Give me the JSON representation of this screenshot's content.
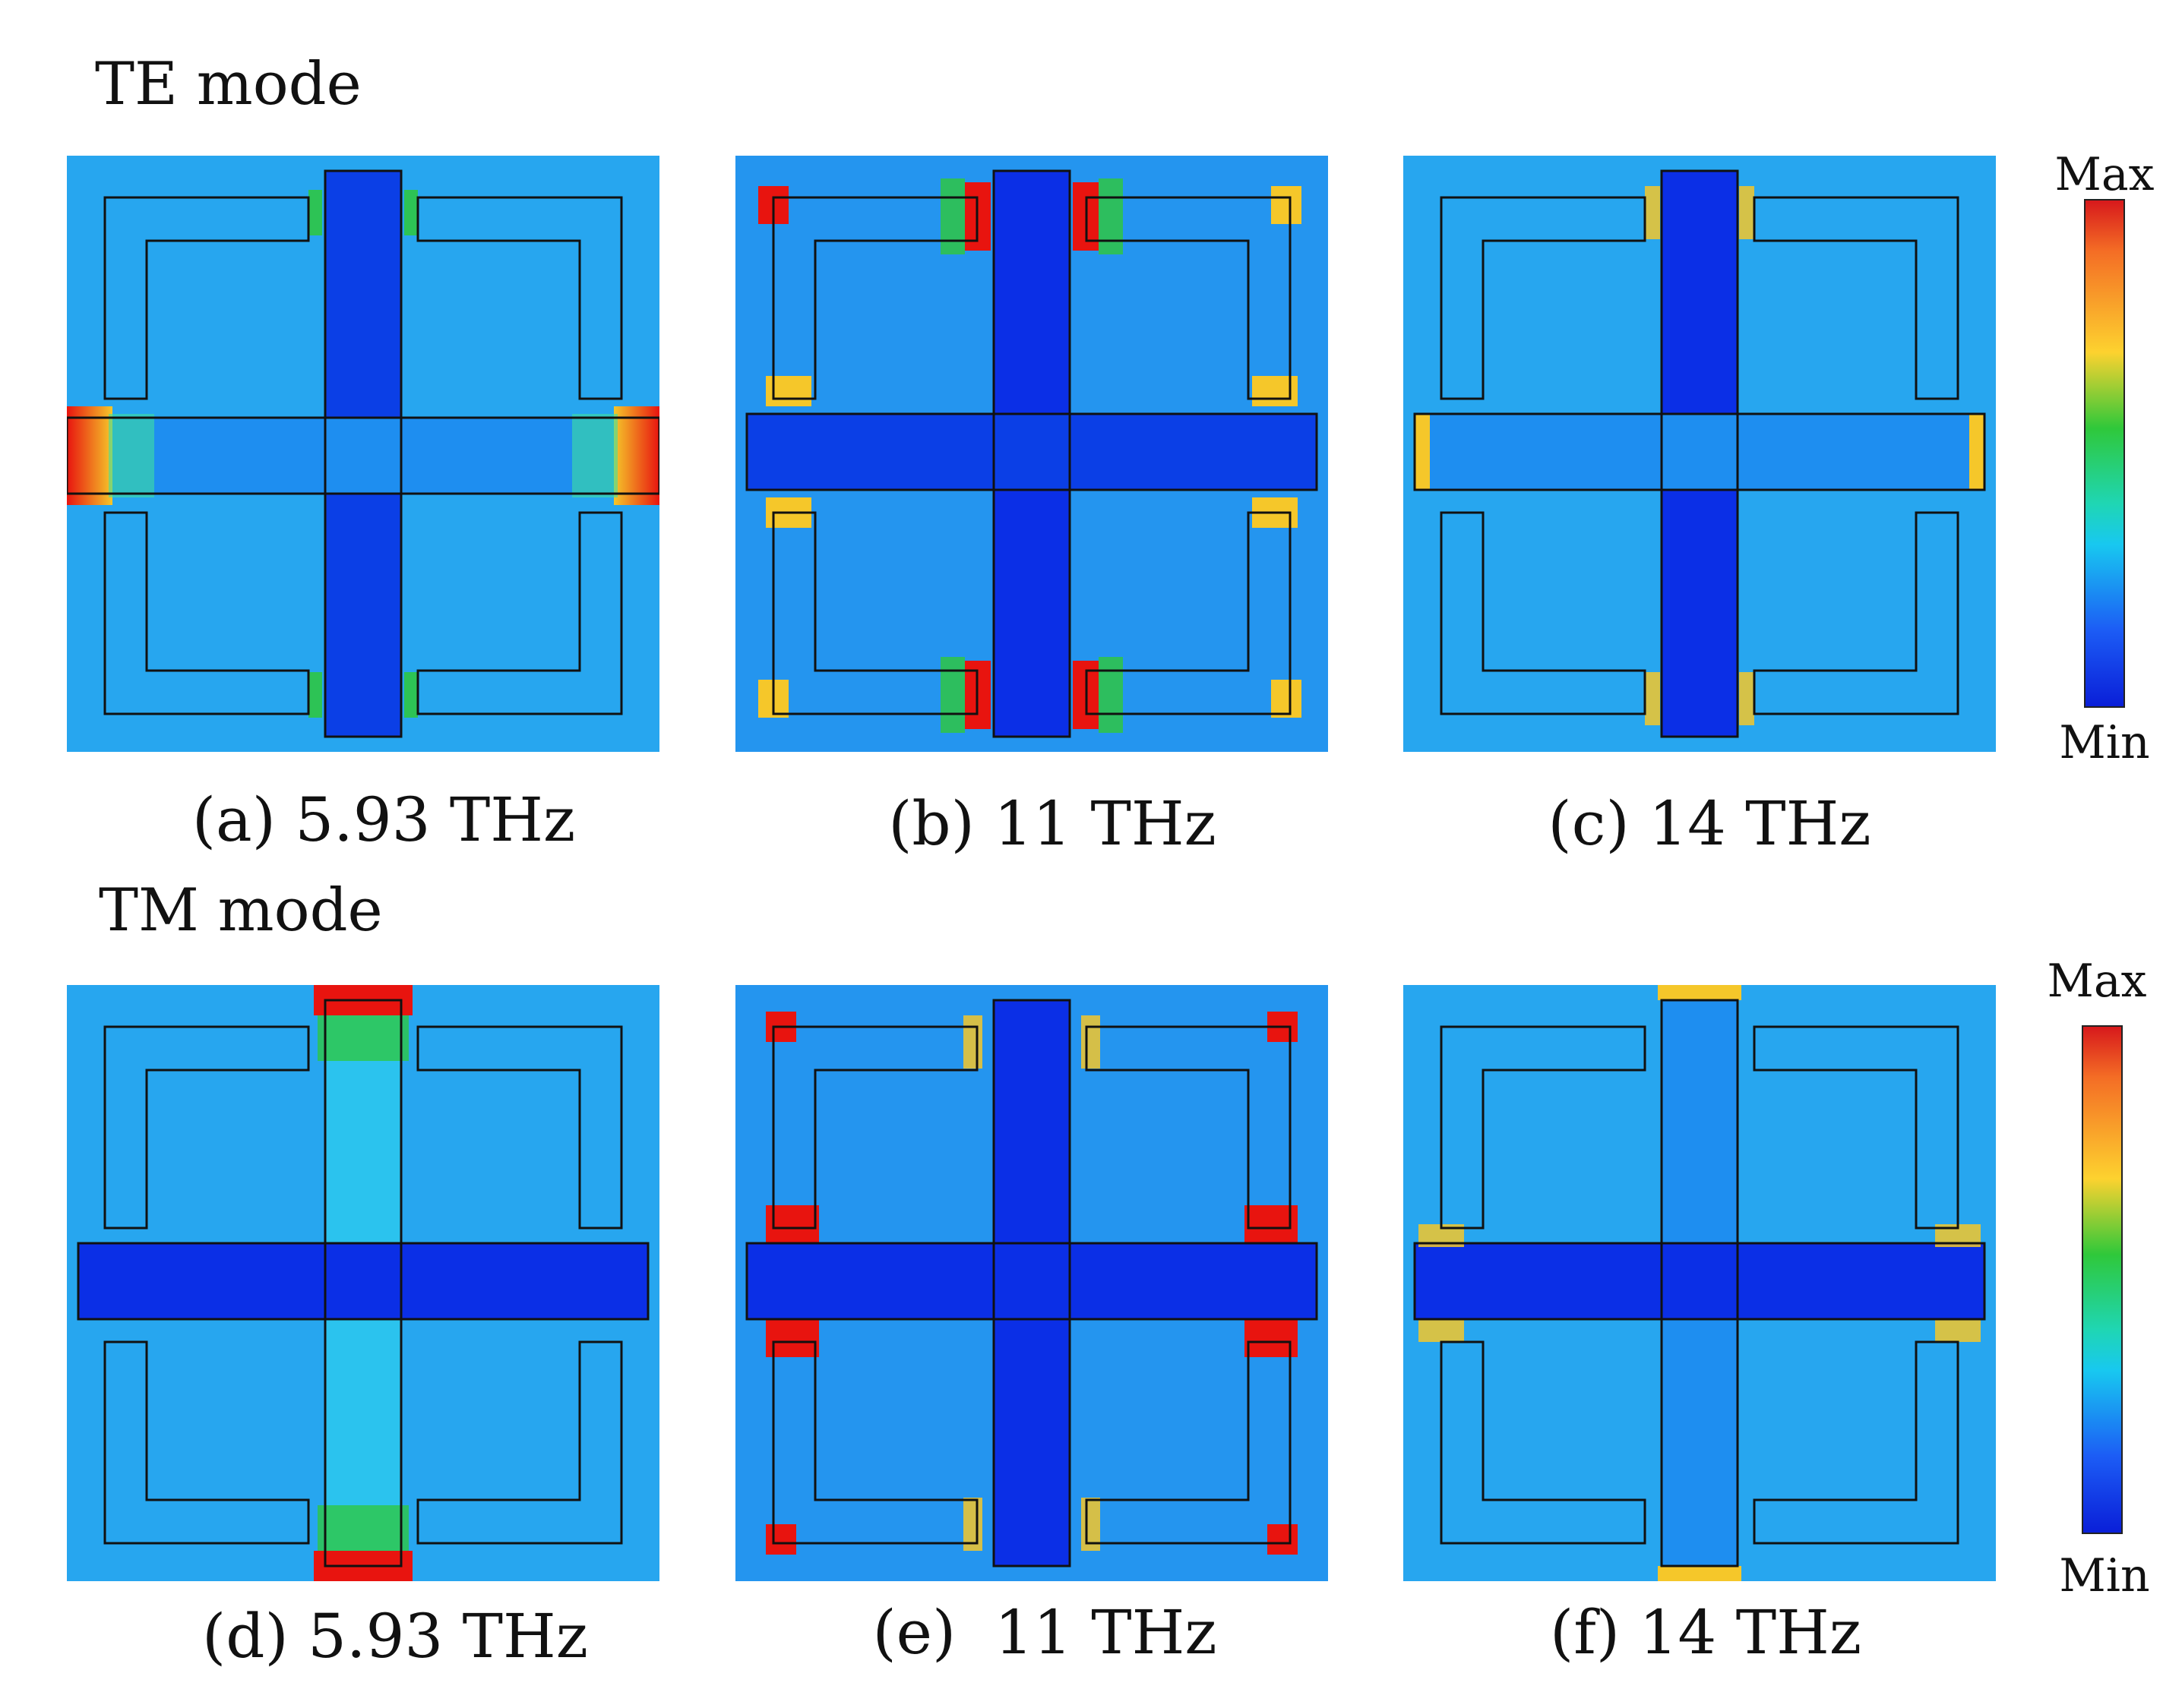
{
  "modes": [
    {
      "title": "TE mode",
      "panels": [
        {
          "caption": "(a) 5.93 THz"
        },
        {
          "caption": "(b) 11 THz"
        },
        {
          "caption": "(c) 14 THz"
        }
      ]
    },
    {
      "title": "TM mode",
      "panels": [
        {
          "caption": "(d) 5.93 THz"
        },
        {
          "caption": "(e)  11 THz"
        },
        {
          "caption": "(f) 14 THz"
        }
      ]
    }
  ],
  "colorbar": {
    "max_label": "Max",
    "min_label": "Min",
    "colors": [
      "#d7191c",
      "#f46d25",
      "#fdd22f",
      "#2fc83a",
      "#1fd6b4",
      "#18c8f0",
      "#1c5cf5",
      "#0a1fd8"
    ]
  },
  "field_colors": {
    "background": "#27a6ef",
    "strong": "#0b2fe6",
    "hot": "#e8140f",
    "warm": "#f5c72a",
    "mid": "#27d16a"
  }
}
